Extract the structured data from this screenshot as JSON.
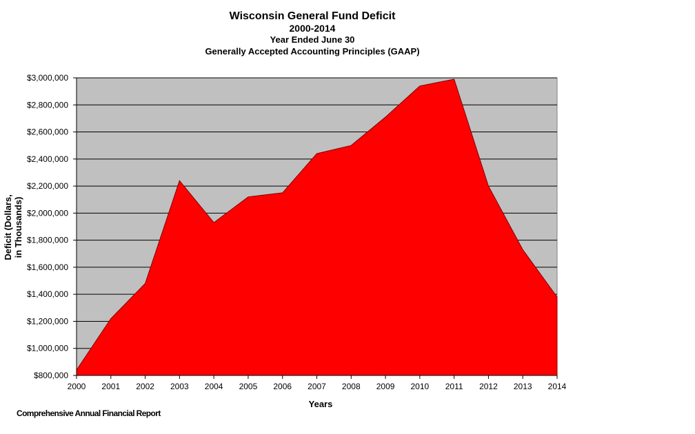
{
  "chart_data": {
    "type": "area",
    "title": "Wisconsin General Fund Deficit",
    "subtitle_lines": [
      "2000-2014",
      "Year Ended June 30",
      "Generally Accepted Accounting  Principles (GAAP)"
    ],
    "xlabel": "Years",
    "ylabel_lines": [
      "Deficit (Dollars,",
      "in Thousands)"
    ],
    "x": [
      "2000",
      "2001",
      "2002",
      "2003",
      "2004",
      "2005",
      "2006",
      "2007",
      "2008",
      "2009",
      "2010",
      "2011",
      "2012",
      "2013",
      "2014"
    ],
    "values": [
      840000,
      1220000,
      1480000,
      2240000,
      1930000,
      2120000,
      2150000,
      2440000,
      2500000,
      2710000,
      2940000,
      2990000,
      2200000,
      1730000,
      1380000
    ],
    "ylim": [
      800000,
      3000000
    ],
    "yticks": [
      800000,
      1000000,
      1200000,
      1400000,
      1600000,
      1800000,
      2000000,
      2200000,
      2400000,
      2600000,
      2800000,
      3000000
    ],
    "ytick_labels": [
      "$800,000",
      "$1,000,000",
      "$1,200,000",
      "$1,400,000",
      "$1,600,000",
      "$1,800,000",
      "$2,000,000",
      "$2,200,000",
      "$2,400,000",
      "$2,600,000",
      "$2,800,000",
      "$3,000,000"
    ],
    "grid": true,
    "colors": {
      "fill": "#ff0000",
      "plot_background": "#c0c0c0",
      "grid": "#000000"
    }
  },
  "footer": "Comprehensive Annual Financial Report"
}
